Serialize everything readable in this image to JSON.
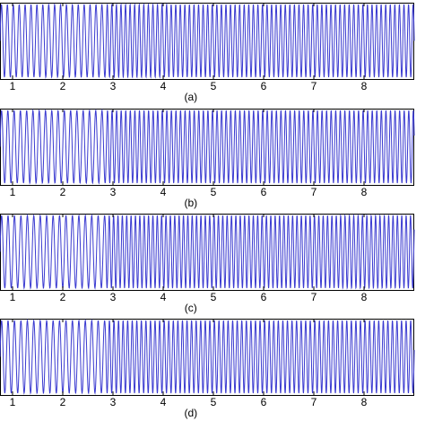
{
  "colors": {
    "signal": "#3a3ad0",
    "axis": "#000000",
    "background": "#ffffff"
  },
  "chart_data": [
    {
      "type": "line",
      "panel_label": "(a)",
      "x_ticks": [
        1,
        2,
        3,
        4,
        5,
        6,
        7,
        8
      ],
      "xlim": [
        0.75,
        9.0
      ],
      "grid": false,
      "series": [
        {
          "segments": [
            {
              "x_start": 0.75,
              "x_end": 2.85,
              "frequency_cycles_per_unit": 8.5
            },
            {
              "x_start": 2.85,
              "x_end": 9.0,
              "frequency_cycles_per_unit": 11.0
            }
          ]
        }
      ]
    },
    {
      "type": "line",
      "panel_label": "(b)",
      "x_ticks": [
        1,
        2,
        3,
        4,
        5,
        6,
        7,
        8
      ],
      "xlim": [
        0.75,
        9.0
      ],
      "grid": false,
      "series": [
        {
          "segments": [
            {
              "x_start": 0.75,
              "x_end": 2.85,
              "frequency_cycles_per_unit": 8.0
            },
            {
              "x_start": 2.85,
              "x_end": 9.0,
              "frequency_cycles_per_unit": 11.0
            }
          ]
        }
      ]
    },
    {
      "type": "line",
      "panel_label": "(c)",
      "x_ticks": [
        1,
        2,
        3,
        4,
        5,
        6,
        7,
        8
      ],
      "xlim": [
        0.75,
        9.0
      ],
      "grid": false,
      "series": [
        {
          "segments": [
            {
              "x_start": 0.75,
              "x_end": 2.85,
              "frequency_cycles_per_unit": 7.8
            },
            {
              "x_start": 2.85,
              "x_end": 9.0,
              "frequency_cycles_per_unit": 11.5
            }
          ]
        }
      ]
    },
    {
      "type": "line",
      "panel_label": "(d)",
      "x_ticks": [
        1,
        2,
        3,
        4,
        5,
        6,
        7,
        8
      ],
      "xlim": [
        0.75,
        9.0
      ],
      "grid": false,
      "series": [
        {
          "segments": [
            {
              "x_start": 0.75,
              "x_end": 2.85,
              "frequency_cycles_per_unit": 7.8
            },
            {
              "x_start": 2.85,
              "x_end": 9.0,
              "frequency_cycles_per_unit": 11.0
            }
          ]
        }
      ]
    }
  ]
}
